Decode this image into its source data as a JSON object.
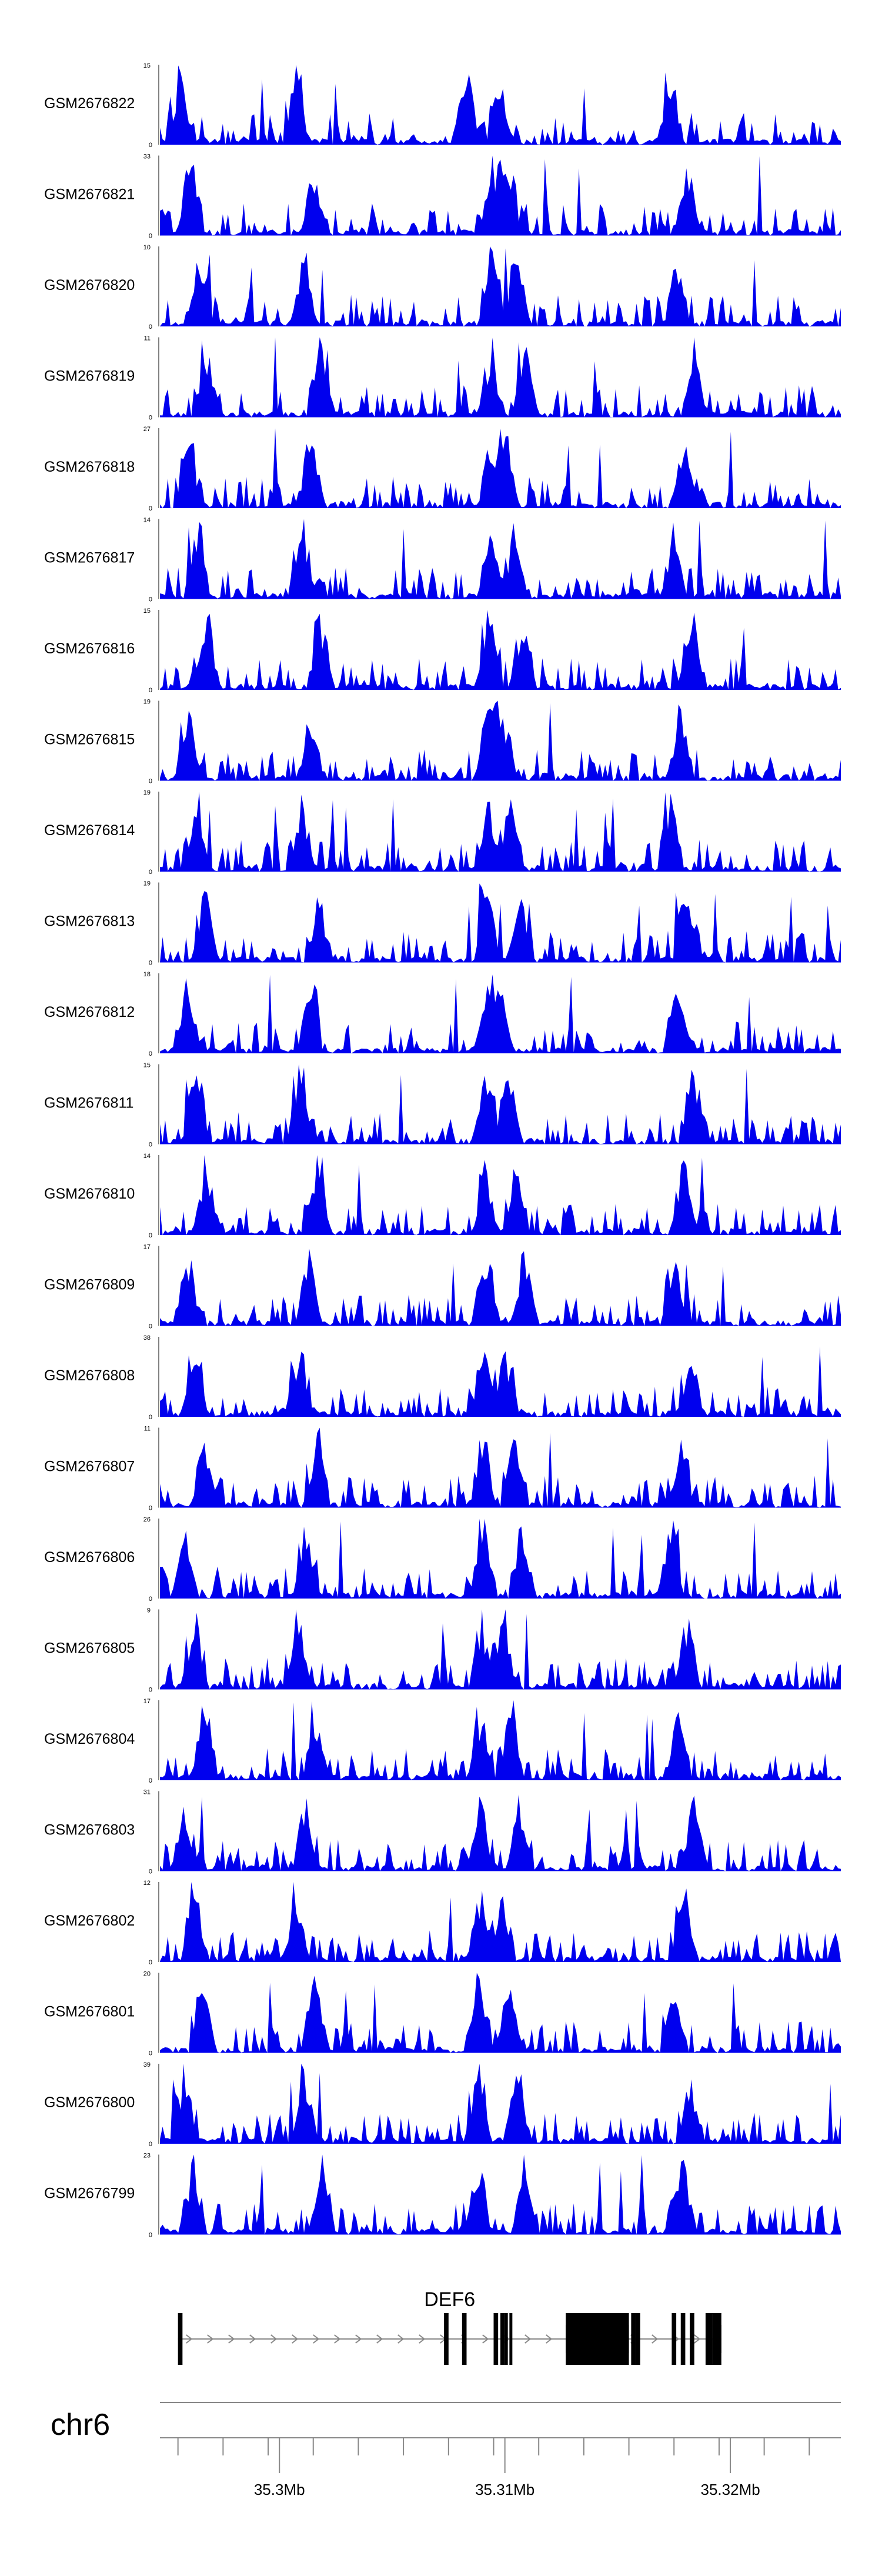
{
  "chart_data": {
    "type": "area",
    "title": "",
    "fill_color": "#0000ee",
    "tracks": [
      {
        "name": "GSM2676822",
        "ymax": "15"
      },
      {
        "name": "GSM2676821",
        "ymax": "33"
      },
      {
        "name": "GSM2676820",
        "ymax": "10"
      },
      {
        "name": "GSM2676819",
        "ymax": "11"
      },
      {
        "name": "GSM2676818",
        "ymax": "27"
      },
      {
        "name": "GSM2676817",
        "ymax": "14"
      },
      {
        "name": "GSM2676816",
        "ymax": "15"
      },
      {
        "name": "GSM2676815",
        "ymax": "19"
      },
      {
        "name": "GSM2676814",
        "ymax": "19"
      },
      {
        "name": "GSM2676813",
        "ymax": "19"
      },
      {
        "name": "GSM2676812",
        "ymax": "18"
      },
      {
        "name": "GSM2676811",
        "ymax": "15"
      },
      {
        "name": "GSM2676810",
        "ymax": "14"
      },
      {
        "name": "GSM2676809",
        "ymax": "17"
      },
      {
        "name": "GSM2676808",
        "ymax": "38"
      },
      {
        "name": "GSM2676807",
        "ymax": "11"
      },
      {
        "name": "GSM2676806",
        "ymax": "26"
      },
      {
        "name": "GSM2676805",
        "ymax": "9"
      },
      {
        "name": "GSM2676804",
        "ymax": "17"
      },
      {
        "name": "GSM2676803",
        "ymax": "31"
      },
      {
        "name": "GSM2676802",
        "ymax": "12"
      },
      {
        "name": "GSM2676801",
        "ymax": "20"
      },
      {
        "name": "GSM2676800",
        "ymax": "39"
      },
      {
        "name": "GSM2676799",
        "ymax": "23"
      }
    ],
    "y0_label": "0",
    "gene": {
      "name": "DEF6",
      "strand": "+",
      "start_mb": 35.2955,
      "end_mb": 35.3196,
      "exons": [
        {
          "start": 35.2955,
          "end": 35.2957
        },
        {
          "start": 35.3073,
          "end": 35.3075
        },
        {
          "start": 35.3081,
          "end": 35.3083
        },
        {
          "start": 35.3095,
          "end": 35.3097
        },
        {
          "start": 35.3098,
          "end": 35.31
        },
        {
          "start": 35.31,
          "end": 35.3101
        },
        {
          "start": 35.3102,
          "end": 35.3103
        },
        {
          "start": 35.3127,
          "end": 35.3155
        },
        {
          "start": 35.3156,
          "end": 35.3158
        },
        {
          "start": 35.3158,
          "end": 35.316
        },
        {
          "start": 35.3174,
          "end": 35.3176
        },
        {
          "start": 35.3178,
          "end": 35.318
        },
        {
          "start": 35.3182,
          "end": 35.3184
        },
        {
          "start": 35.3189,
          "end": 35.3192
        },
        {
          "start": 35.3192,
          "end": 35.3196
        }
      ],
      "thick_exons": [
        {
          "start": 35.3127,
          "end": 35.3155
        },
        {
          "start": 35.3192,
          "end": 35.3196
        }
      ]
    },
    "chromosome": "chr6",
    "xlim_mb": [
      35.2947,
      35.3249
    ],
    "ticks": [
      {
        "value": 35.3,
        "label": "35.3Mb"
      },
      {
        "value": 35.31,
        "label": "35.31Mb"
      },
      {
        "value": 35.32,
        "label": "35.32Mb"
      }
    ],
    "minor_ticks_mb": [
      35.2955,
      35.2975,
      35.2995,
      35.3015,
      35.3035,
      35.3055,
      35.3075,
      35.3095,
      35.3115,
      35.3135,
      35.3155,
      35.3175,
      35.3195,
      35.3215,
      35.3235
    ]
  }
}
